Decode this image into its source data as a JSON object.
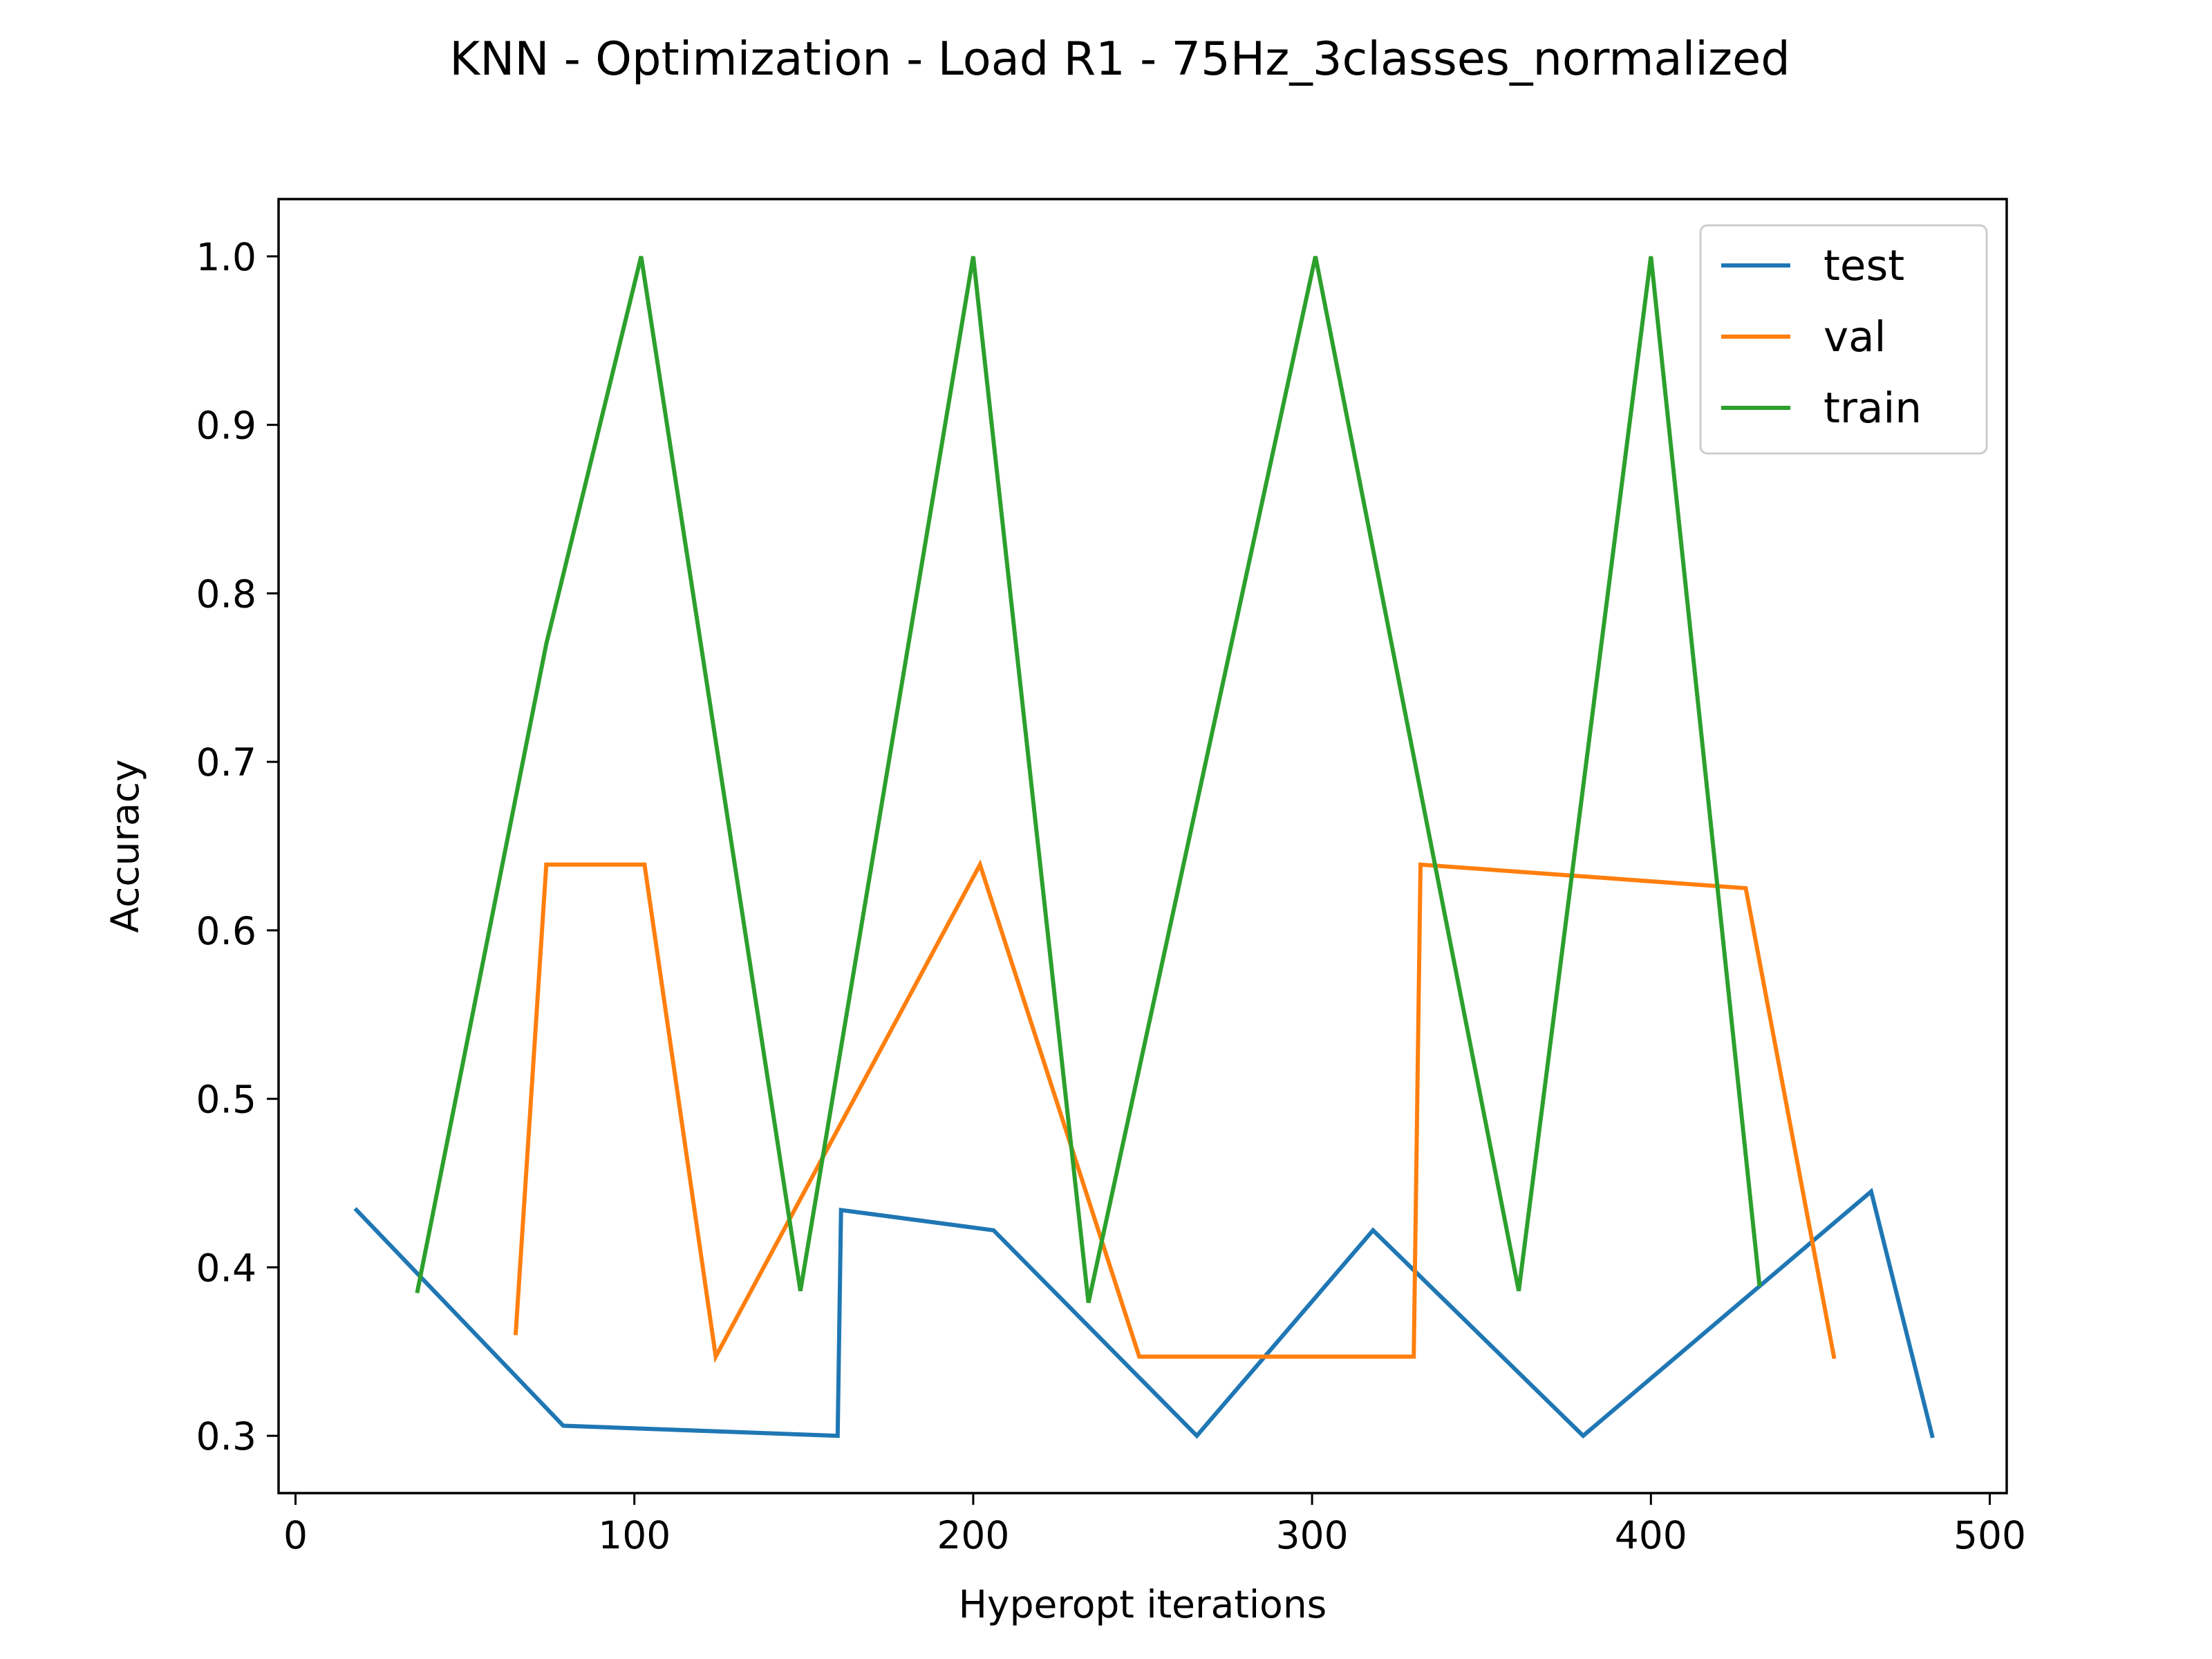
{
  "chart_data": {
    "type": "line",
    "title": "KNN - Optimization - Load R1 - 75Hz_3classes_normalized",
    "xlabel": "Hyperopt iterations",
    "ylabel": "Accuracy",
    "xlim": [
      -5,
      505
    ],
    "ylim": [
      0.266,
      1.034
    ],
    "xticks": [
      0,
      100,
      200,
      300,
      400,
      500
    ],
    "xtick_labels": [
      "0",
      "100",
      "200",
      "300",
      "400",
      "500"
    ],
    "yticks": [
      0.3,
      0.4,
      0.5,
      0.6,
      0.7,
      0.8,
      0.9,
      1.0
    ],
    "ytick_labels": [
      "0.3",
      "0.4",
      "0.5",
      "0.6",
      "0.7",
      "0.8",
      "0.9",
      "1.0"
    ],
    "grid": false,
    "legend_position": "top-right",
    "series": [
      {
        "name": "test",
        "color": "#1f77b4",
        "x": [
          18,
          79,
          160,
          161,
          206,
          266,
          318,
          380,
          465,
          483
        ],
        "y": [
          0.434,
          0.306,
          0.3,
          0.434,
          0.422,
          0.3,
          0.422,
          0.3,
          0.445,
          0.3
        ]
      },
      {
        "name": "val",
        "color": "#ff7f0e",
        "x": [
          65,
          74,
          103,
          124,
          202,
          249,
          330,
          332,
          428,
          454
        ],
        "y": [
          0.361,
          0.639,
          0.639,
          0.347,
          0.639,
          0.347,
          0.347,
          0.639,
          0.625,
          0.347
        ]
      },
      {
        "name": "train",
        "color": "#2ca02c",
        "x": [
          36,
          74,
          102,
          149,
          200,
          234,
          301,
          361,
          400,
          432
        ],
        "y": [
          0.386,
          0.77,
          1.0,
          0.386,
          1.0,
          0.379,
          1.0,
          0.386,
          1.0,
          0.39
        ]
      }
    ]
  }
}
